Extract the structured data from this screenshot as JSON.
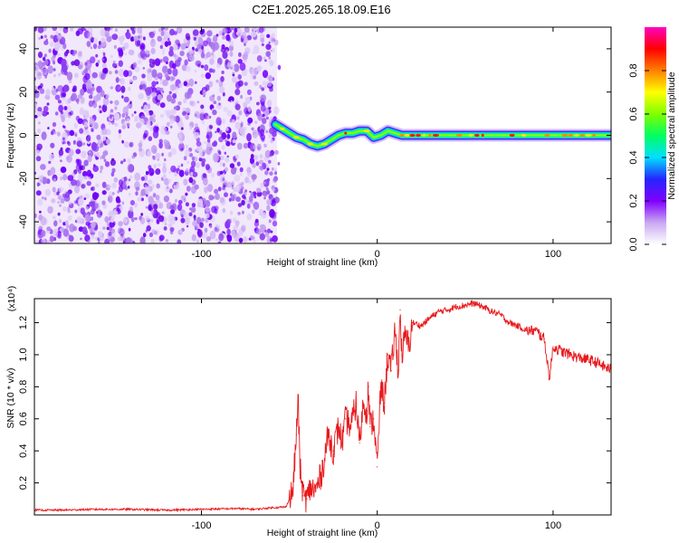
{
  "figure_title": "C2E1.2025.265.18.09.E16",
  "chart_data": [
    {
      "type": "heatmap",
      "title": "C2E1.2025.265.18.09.E16",
      "xlabel": "Height of straight line (km)",
      "ylabel": "Frequency (Hz)",
      "xlim": [
        -195,
        133
      ],
      "ylim": [
        -50,
        50
      ],
      "xticks": [
        -100,
        0,
        100
      ],
      "yticks": [
        -40,
        -20,
        0,
        20,
        40
      ],
      "xtick_labels": [
        "-100",
        "0",
        "100"
      ],
      "ytick_labels": [
        "-40",
        "-20",
        "0",
        "20",
        "40"
      ],
      "noise_region_x": [
        -195,
        -57
      ],
      "noise_region_y": [
        -50,
        50
      ],
      "signal_track": {
        "x": [
          -58,
          -54,
          -50,
          -46,
          -42,
          -38,
          -34,
          -30,
          -26,
          -22,
          -18,
          -14,
          -10,
          -6,
          -2,
          2,
          6,
          10,
          14,
          20,
          30,
          40,
          60,
          80,
          100,
          120,
          133
        ],
        "y": [
          5,
          3,
          1,
          -1,
          -2,
          -4,
          -5,
          -4,
          -2,
          0,
          1,
          1,
          2,
          2,
          -1,
          0,
          2,
          1,
          0,
          0,
          0,
          0,
          0,
          0,
          0,
          0,
          0
        ]
      },
      "colorbar": {
        "label": "Normalized spectral amplitude",
        "range": [
          0,
          1
        ],
        "ticks": [
          0.0,
          0.2,
          0.4,
          0.6,
          0.8
        ],
        "tick_labels": [
          "0.0",
          "0.2",
          "0.4",
          "0.6",
          "0.8"
        ],
        "colors": [
          "#ffffff",
          "#c9a8f2",
          "#7f00ff",
          "#2525ff",
          "#00e0ff",
          "#00ff60",
          "#80ff00",
          "#ffff00",
          "#ff8000",
          "#ff0000",
          "#ff00c0"
        ]
      }
    },
    {
      "type": "line",
      "xlabel": "Height of straight line (km)",
      "ylabel": "SNR (10 * v/v)",
      "scale_label": "(x10⁴)",
      "xlim": [
        -195,
        133
      ],
      "ylim": [
        0,
        1.35
      ],
      "xticks": [
        -100,
        0,
        100
      ],
      "yticks": [
        0.2,
        0.4,
        0.6,
        0.8,
        1.0,
        1.2
      ],
      "xtick_labels": [
        "-100",
        "0",
        "100"
      ],
      "ytick_labels": [
        "0.2",
        "0.4",
        "0.6",
        "0.8",
        "1.0",
        "1.2"
      ],
      "series": [
        {
          "name": "SNR",
          "color": "#e8191c",
          "x": [
            -195,
            -180,
            -160,
            -140,
            -120,
            -100,
            -80,
            -70,
            -60,
            -52,
            -48,
            -46,
            -45,
            -44,
            -43,
            -42,
            -40,
            -38,
            -35,
            -32,
            -30,
            -28,
            -25,
            -22,
            -20,
            -18,
            -15,
            -12,
            -10,
            -8,
            -6,
            -5,
            -4,
            -2,
            0,
            2,
            4,
            6,
            8,
            10,
            12,
            13,
            14,
            16,
            18,
            20,
            25,
            30,
            35,
            40,
            45,
            50,
            55,
            60,
            65,
            70,
            75,
            80,
            85,
            90,
            95,
            98,
            100,
            105,
            110,
            115,
            120,
            125,
            130,
            133
          ],
          "y": [
            0.03,
            0.03,
            0.035,
            0.035,
            0.03,
            0.035,
            0.04,
            0.035,
            0.045,
            0.05,
            0.15,
            0.5,
            0.75,
            0.3,
            0.2,
            0.12,
            0.1,
            0.17,
            0.15,
            0.25,
            0.35,
            0.5,
            0.4,
            0.55,
            0.45,
            0.6,
            0.55,
            0.7,
            0.45,
            0.7,
            0.65,
            0.8,
            0.55,
            0.6,
            0.3,
            0.8,
            0.7,
            1.0,
            0.9,
            1.15,
            0.9,
            1.28,
            1.0,
            1.12,
            1.05,
            1.2,
            1.18,
            1.23,
            1.27,
            1.28,
            1.3,
            1.31,
            1.32,
            1.3,
            1.27,
            1.25,
            1.2,
            1.18,
            1.15,
            1.15,
            1.1,
            0.85,
            1.05,
            1.02,
            1.0,
            0.98,
            0.97,
            0.95,
            0.92,
            0.91
          ]
        }
      ]
    }
  ]
}
